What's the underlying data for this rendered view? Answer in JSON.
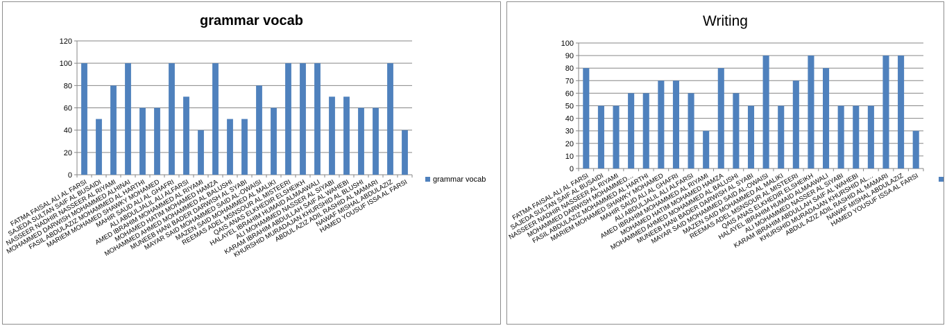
{
  "chart_data": [
    {
      "type": "bar",
      "title": "grammar vocab",
      "xlabel": "",
      "ylabel": "",
      "ylim": [
        0,
        120
      ],
      "yticks": [
        0,
        20,
        40,
        60,
        80,
        100,
        120
      ],
      "legend_position": "right",
      "grid": true,
      "bar_color": "#4F81BD",
      "categories": [
        "FATMA FAISAL ALI AL FARSI",
        "SAJEDA SULTAN SAIF AL BUSAIDI",
        "NASSEER NADHIR NASSEER AL RIYAMI",
        "MOHAMMED DARWISH MOHAMMED ALHINAI",
        "FASIL ABDULAZIZ MOHAMMED AL HARTHI",
        "MARIEM MOHAMED SHAWKY MOHAMED",
        "MAHIR SAUD ALI AL GHAFRI",
        "ALI ABDULJALIL ALI ALFARSI",
        "AMED IBRAHIM MOHAMMED AL RIYAMI",
        "MOHAMED HATIM MOHAMED HAMZA",
        "MOHAMMED AHMED MOHAMMED AL BALUSHI",
        "MUNEEB HANI BADER DARWISH AL SYABI",
        "MAYAR SAID MOHAMMED SAID AL-OWAISI",
        "MAZEN SAID MOHAMMED AL MALIKI",
        "REEMAS ADEL MSNSOUR AL MISTEERI",
        "QAIS ANAS ELKHEDIR ELSHEIKH",
        "HALAYEL IBRAHIM HUMAID ALMAAWALI",
        "ALI MOHAMMED NASSER AL SIYABI",
        "KARAM IBRAHIM ABDULLAH SAIF AL WAHEBI",
        "KHURSHID MURADAJAN KHURSHID AL BLUSHI",
        "ABDUL AZIZ ADIL RASHID AL MAMARI",
        "NAWAF MISHAL ABDULAZIZ",
        "HAMED YOUSUF ISSA AL FARSI"
      ],
      "series": [
        {
          "name": "grammar vocab",
          "values": [
            100,
            50,
            80,
            100,
            60,
            60,
            100,
            70,
            40,
            100,
            50,
            50,
            80,
            60,
            100,
            100,
            100,
            70,
            70,
            60,
            60,
            100,
            40
          ]
        }
      ]
    },
    {
      "type": "bar",
      "title": "Writing",
      "xlabel": "",
      "ylabel": "",
      "ylim": [
        0,
        100
      ],
      "yticks": [
        0,
        10,
        20,
        30,
        40,
        50,
        60,
        70,
        80,
        90,
        100
      ],
      "legend_position": "right",
      "grid": true,
      "bar_color": "#4F81BD",
      "categories": [
        "FATMA FAISAL ALI AL FARSI",
        "SAJEDA SULTAN SAIF AL BUSAIDI",
        "NASSEER NADHIR NASSEER AL RIYAMI",
        "MOHAMMED DARWISH MOHAMMED…",
        "FASIL ABDULAZIZ MOHAMMED AL HARTHI",
        "MARIEM MOHAMED SHAWKY MOHAMED",
        "MAHIR SAUD ALI AL GHAFRI",
        "ALI ABDULJALIL ALI ALFARSI",
        "AMED IBRAHIM MOHAMMED AL RIYAMI",
        "MOHAMED HATIM MOHAMED HAMZA",
        "MOHAMMED AHMED MOHAMMED AL BALUSHI",
        "MUNEEB HANI BADER DARWISH AL SYABI",
        "MAYAR SAID MOHAMMED SAID AL-OWAISI",
        "MAZEN SAID MOHAMMED AL MALIKI",
        "REEMAS ADEL MSNSOUR AL MISTEERI",
        "QAIS ANAS ELKHEDIR ELSHEIKH",
        "HALAYEL IBRAHIM HUMAID ALMAAWALI",
        "ALI MOHAMMED NASSER AL SIYABI",
        "KARAM IBRAHIM ABDULLAH SAIF AL WAHEBI",
        "KHURSHID MURADAJAN KHURSHID AL…",
        "ABDUL AZIZ ADIL RASHID AL MAMARI",
        "NAWAF MISHAL ABDULAZIZ",
        "HAMED YOUSUF ISSA AL FARSI"
      ],
      "series": [
        {
          "name": "",
          "values": [
            80,
            50,
            50,
            60,
            60,
            70,
            70,
            60,
            30,
            80,
            60,
            50,
            90,
            50,
            70,
            90,
            80,
            50,
            50,
            50,
            90,
            90,
            30
          ]
        }
      ]
    }
  ]
}
